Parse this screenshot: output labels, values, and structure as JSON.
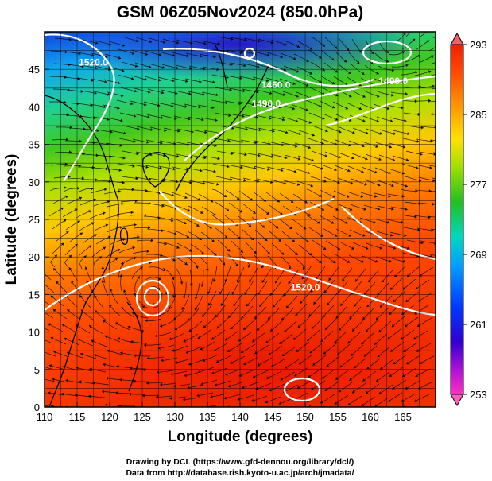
{
  "chart_data": {
    "type": "heatmap",
    "title": "GSM 06Z05Nov2024 (850.0hPa)",
    "xlabel": "Longitude (degrees)",
    "ylabel": "Latitude  (degrees)",
    "xlim": [
      110,
      170
    ],
    "ylim": [
      0,
      50
    ],
    "x_ticks": [
      110,
      115,
      120,
      125,
      130,
      135,
      140,
      145,
      150,
      155,
      160,
      165
    ],
    "y_ticks": [
      0,
      5,
      10,
      15,
      20,
      25,
      30,
      35,
      40,
      45
    ],
    "grid": true,
    "colorbar": {
      "placement": "right",
      "min": 253,
      "max": 293,
      "tick_values": [
        253,
        261,
        269,
        277,
        285,
        293
      ],
      "tick_labels": [
        "253",
        "261",
        "269",
        "277",
        "285",
        "293"
      ]
    },
    "contour_labels": [
      {
        "text": "1520.0",
        "lon": 117.5,
        "lat": 45.5
      },
      {
        "text": "1460.0",
        "lon": 145.5,
        "lat": 42.5
      },
      {
        "text": "1490.0",
        "lon": 144.0,
        "lat": 40.0
      },
      {
        "text": "1490.0",
        "lon": 163.5,
        "lat": 43.0
      },
      {
        "text": "1520.0",
        "lon": 150.0,
        "lat": 15.5
      }
    ],
    "credits": [
      "Drawing by DCL (https://www.gfd-dennou.org/library/dcl/)",
      "Data from http://database.rish.kyoto-u.ac.jp/arch/jmadata/"
    ]
  },
  "colors": {
    "contour": "#ffffff",
    "vectors": "#000000",
    "coast": "#000000",
    "grid": "#000000"
  }
}
